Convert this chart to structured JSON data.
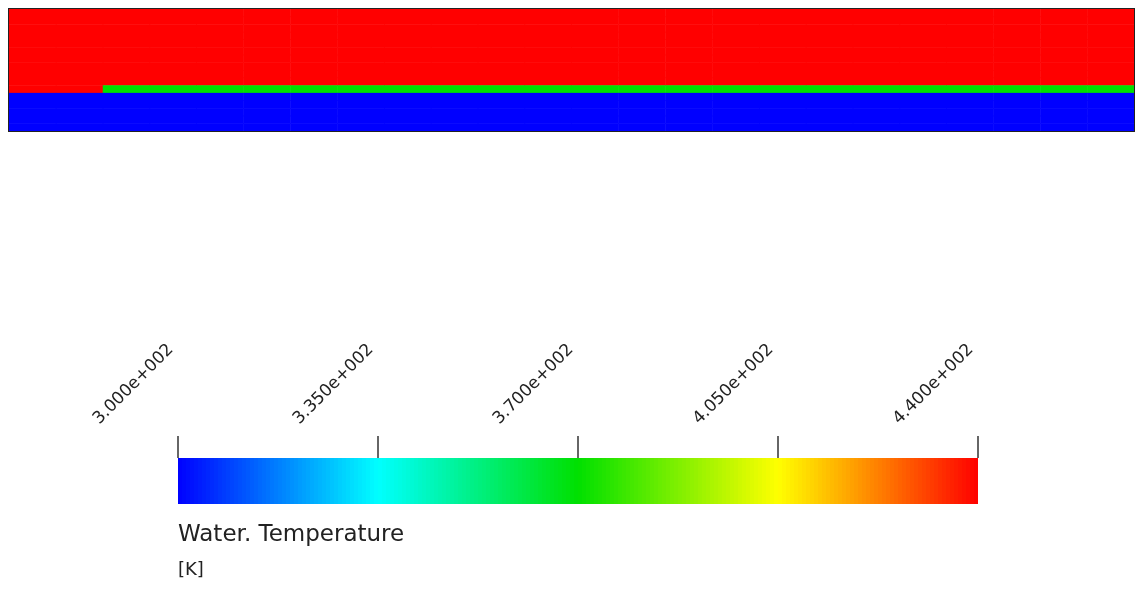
{
  "chart_data": {
    "type": "heatmap",
    "categories": [
      null,
      null,
      null,
      null,
      null,
      null,
      null,
      null,
      null,
      null,
      null,
      null,
      null,
      null,
      null,
      null,
      null,
      null,
      null,
      null,
      null,
      null,
      null,
      null
    ],
    "y_categories": [
      null,
      null,
      null,
      null,
      null,
      null,
      null,
      null,
      null,
      null,
      null,
      null,
      null,
      null,
      null,
      null
    ],
    "cells": [
      [
        440,
        440,
        440,
        440,
        440,
        440,
        440,
        440,
        440,
        440,
        440,
        440,
        440,
        440,
        440,
        440,
        440,
        440,
        440,
        440,
        440,
        440,
        440,
        440
      ],
      [
        440,
        440,
        440,
        440,
        440,
        440,
        440,
        440,
        440,
        440,
        440,
        440,
        440,
        440,
        440,
        440,
        440,
        440,
        440,
        440,
        440,
        440,
        440,
        440
      ],
      [
        440,
        440,
        440,
        440,
        440,
        440,
        440,
        440,
        440,
        440,
        440,
        440,
        440,
        440,
        440,
        440,
        440,
        440,
        440,
        440,
        440,
        440,
        440,
        440
      ],
      [
        440,
        440,
        440,
        440,
        440,
        440,
        440,
        440,
        440,
        440,
        440,
        440,
        440,
        440,
        440,
        440,
        440,
        440,
        440,
        440,
        440,
        440,
        440,
        440
      ],
      [
        440,
        440,
        440,
        440,
        440,
        440,
        440,
        440,
        440,
        440,
        440,
        440,
        440,
        440,
        440,
        440,
        440,
        440,
        440,
        440,
        440,
        440,
        440,
        440
      ],
      [
        440,
        440,
        440,
        440,
        440,
        440,
        440,
        440,
        440,
        440,
        440,
        440,
        440,
        440,
        440,
        440,
        440,
        440,
        440,
        440,
        440,
        440,
        440,
        440
      ],
      [
        440,
        440,
        440,
        440,
        440,
        440,
        440,
        440,
        440,
        440,
        440,
        440,
        440,
        440,
        440,
        440,
        440,
        440,
        440,
        440,
        440,
        440,
        440,
        440
      ],
      [
        440,
        440,
        440,
        440,
        440,
        440,
        440,
        440,
        440,
        440,
        440,
        440,
        440,
        440,
        440,
        440,
        440,
        440,
        440,
        440,
        440,
        440,
        440,
        440
      ],
      [
        440,
        440,
        440,
        440,
        440,
        440,
        440,
        440,
        440,
        440,
        440,
        440,
        440,
        440,
        440,
        440,
        440,
        440,
        440,
        440,
        440,
        440,
        440,
        440
      ],
      [
        440,
        440,
        440,
        440,
        440,
        440,
        440,
        440,
        440,
        440,
        440,
        440,
        440,
        440,
        440,
        440,
        440,
        440,
        440,
        440,
        440,
        440,
        440,
        440
      ],
      [
        440,
        440,
        370,
        370,
        370,
        370,
        370,
        370,
        370,
        370,
        370,
        370,
        370,
        370,
        370,
        370,
        370,
        370,
        370,
        370,
        370,
        370,
        370,
        370
      ],
      [
        300,
        300,
        300,
        300,
        300,
        300,
        300,
        300,
        300,
        300,
        300,
        300,
        300,
        300,
        300,
        300,
        300,
        300,
        300,
        300,
        300,
        300,
        300,
        300
      ],
      [
        300,
        300,
        300,
        300,
        300,
        300,
        300,
        300,
        300,
        300,
        300,
        300,
        300,
        300,
        300,
        300,
        300,
        300,
        300,
        300,
        300,
        300,
        300,
        300
      ],
      [
        300,
        300,
        300,
        300,
        300,
        300,
        300,
        300,
        300,
        300,
        300,
        300,
        300,
        300,
        300,
        300,
        300,
        300,
        300,
        300,
        300,
        300,
        300,
        300
      ],
      [
        300,
        300,
        300,
        300,
        300,
        300,
        300,
        300,
        300,
        300,
        300,
        300,
        300,
        300,
        300,
        300,
        300,
        300,
        300,
        300,
        300,
        300,
        300,
        300
      ],
      [
        300,
        300,
        300,
        300,
        300,
        300,
        300,
        300,
        300,
        300,
        300,
        300,
        300,
        300,
        300,
        300,
        300,
        300,
        300,
        300,
        300,
        300,
        300,
        300
      ]
    ],
    "clim": [
      300,
      440
    ],
    "cticks": [
      {
        "value": 300,
        "label": "3.000e+002"
      },
      {
        "value": 335,
        "label": "3.350e+002"
      },
      {
        "value": 370,
        "label": "3.700e+002"
      },
      {
        "value": 405,
        "label": "4.050e+002"
      },
      {
        "value": 440,
        "label": "4.400e+002"
      }
    ],
    "clabel": "Water. Temperature",
    "annotations": [
      "[K]"
    ],
    "tick_labels": false
  }
}
